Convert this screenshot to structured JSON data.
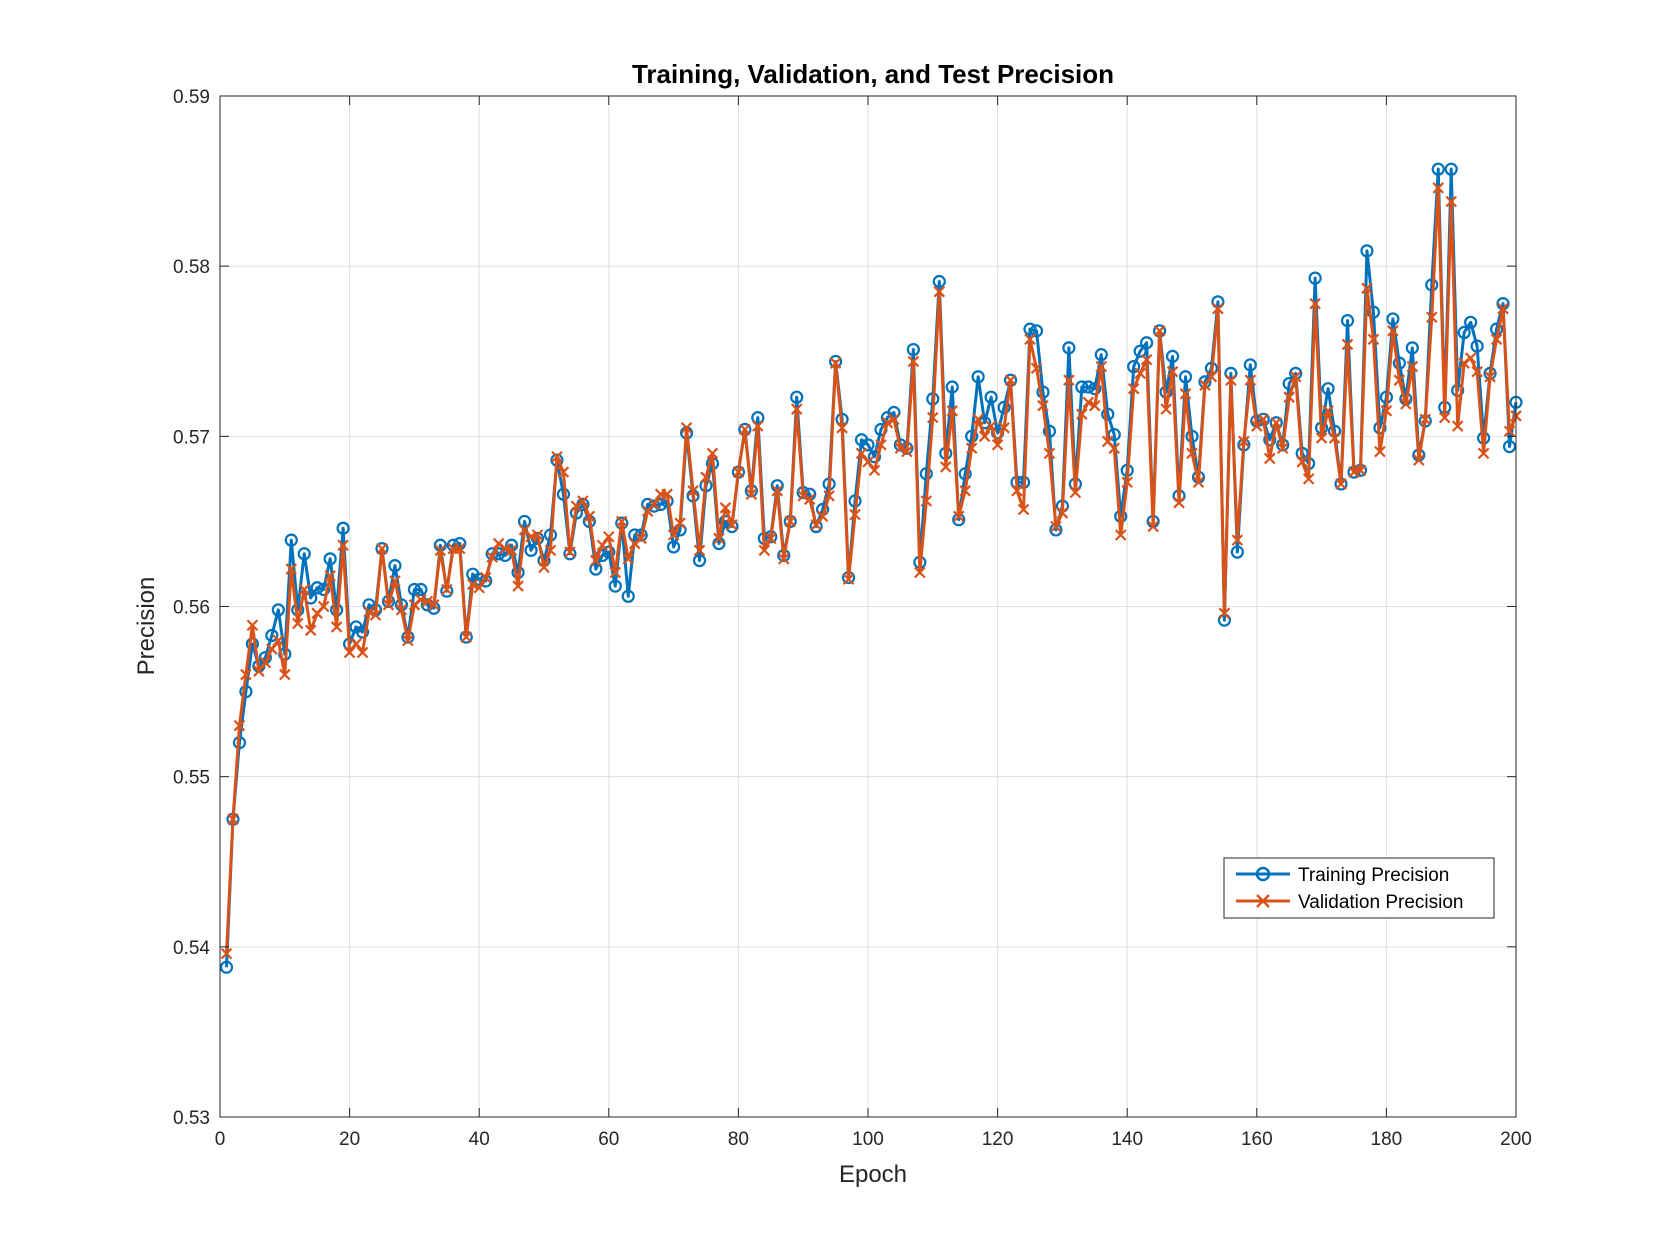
{
  "chart_data": {
    "type": "line",
    "title": "Training, Validation, and Test Precision",
    "xlabel": "Epoch",
    "ylabel": "Precision",
    "xlim": [
      0,
      200
    ],
    "ylim": [
      0.53,
      0.59
    ],
    "xticks": [
      0,
      20,
      40,
      60,
      80,
      100,
      120,
      140,
      160,
      180,
      200
    ],
    "yticks": [
      0.53,
      0.54,
      0.55,
      0.56,
      0.57,
      0.58,
      0.59
    ],
    "xtick_labels": [
      "0",
      "20",
      "40",
      "60",
      "80",
      "100",
      "120",
      "140",
      "160",
      "180",
      "200"
    ],
    "ytick_labels": [
      "0.53",
      "0.54",
      "0.55",
      "0.56",
      "0.57",
      "0.58",
      "0.59"
    ],
    "grid": true,
    "legend_position": "lower-right",
    "series": [
      {
        "name": "Training Precision",
        "color": "#0072BD",
        "marker": "circle",
        "x_start": 1,
        "values": [
          0.5388,
          0.5475,
          0.552,
          0.555,
          0.5578,
          0.5565,
          0.557,
          0.5583,
          0.5598,
          0.5572,
          0.5639,
          0.5598,
          0.5631,
          0.5605,
          0.5611,
          0.561,
          0.5628,
          0.5598,
          0.5646,
          0.5578,
          0.5588,
          0.5585,
          0.5601,
          0.5598,
          0.5634,
          0.5603,
          0.5624,
          0.5601,
          0.5582,
          0.561,
          0.561,
          0.5601,
          0.5599,
          0.5636,
          0.5609,
          0.5636,
          0.5637,
          0.5582,
          0.5619,
          0.5616,
          0.5615,
          0.5631,
          0.5631,
          0.563,
          0.5636,
          0.562,
          0.565,
          0.5633,
          0.564,
          0.5627,
          0.5642,
          0.5686,
          0.5666,
          0.5631,
          0.5655,
          0.566,
          0.565,
          0.5622,
          0.563,
          0.5632,
          0.5612,
          0.5649,
          0.5606,
          0.5642,
          0.5642,
          0.566,
          0.5659,
          0.566,
          0.5662,
          0.5635,
          0.5645,
          0.5702,
          0.5665,
          0.5627,
          0.5671,
          0.5684,
          0.5637,
          0.565,
          0.5647,
          0.5679,
          0.5704,
          0.5668,
          0.5711,
          0.564,
          0.5641,
          0.5671,
          0.563,
          0.565,
          0.5723,
          0.5667,
          0.5666,
          0.5647,
          0.5657,
          0.5672,
          0.5744,
          0.571,
          0.5617,
          0.5662,
          0.5698,
          0.5695,
          0.5688,
          0.5704,
          0.5711,
          0.5714,
          0.5695,
          0.5693,
          0.5751,
          0.5626,
          0.5678,
          0.5722,
          0.5791,
          0.569,
          0.5729,
          0.5651,
          0.5678,
          0.57,
          0.5735,
          0.5708,
          0.5723,
          0.5702,
          0.5717,
          0.5733,
          0.5673,
          0.5673,
          0.5763,
          0.5762,
          0.5726,
          0.5703,
          0.5645,
          0.5659,
          0.5752,
          0.5672,
          0.5729,
          0.5729,
          0.5728,
          0.5748,
          0.5713,
          0.5701,
          0.5653,
          0.568,
          0.5741,
          0.575,
          0.5755,
          0.565,
          0.5762,
          0.5726,
          0.5747,
          0.5665,
          0.5735,
          0.57,
          0.5676,
          0.5732,
          0.574,
          0.5779,
          0.5592,
          0.5737,
          0.5632,
          0.5695,
          0.5742,
          0.5709,
          0.571,
          0.5698,
          0.5708,
          0.5695,
          0.5731,
          0.5737,
          0.569,
          0.5684,
          0.5793,
          0.5705,
          0.5728,
          0.5703,
          0.5672,
          0.5768,
          0.5679,
          0.568,
          0.5809,
          0.5773,
          0.5705,
          0.5723,
          0.5769,
          0.5743,
          0.5722,
          0.5752,
          0.5689,
          0.5709,
          0.5789,
          0.5857,
          0.5717,
          0.5857,
          0.5727,
          0.5761,
          0.5767,
          0.5753,
          0.5699,
          0.5737,
          0.5763,
          0.5778,
          0.5694,
          0.572
        ]
      },
      {
        "name": "Validation Precision",
        "color": "#D95319",
        "marker": "x",
        "x_start": 1,
        "values": [
          0.5396,
          0.5475,
          0.553,
          0.556,
          0.5589,
          0.5562,
          0.5567,
          0.5575,
          0.558,
          0.556,
          0.5622,
          0.559,
          0.561,
          0.5586,
          0.5596,
          0.56,
          0.5618,
          0.5588,
          0.5636,
          0.5573,
          0.5578,
          0.5573,
          0.5597,
          0.5595,
          0.5634,
          0.5601,
          0.5615,
          0.5598,
          0.558,
          0.5601,
          0.5604,
          0.5603,
          0.5601,
          0.5633,
          0.561,
          0.5634,
          0.5634,
          0.5582,
          0.5613,
          0.5611,
          0.5617,
          0.5629,
          0.5637,
          0.5634,
          0.5633,
          0.5612,
          0.5645,
          0.5641,
          0.5642,
          0.5623,
          0.5633,
          0.5688,
          0.5679,
          0.5632,
          0.5659,
          0.5662,
          0.5653,
          0.5627,
          0.5636,
          0.5641,
          0.562,
          0.565,
          0.5628,
          0.5637,
          0.564,
          0.5656,
          0.566,
          0.5666,
          0.5666,
          0.5642,
          0.5649,
          0.5705,
          0.5668,
          0.5633,
          0.5676,
          0.569,
          0.564,
          0.5658,
          0.5648,
          0.5679,
          0.5704,
          0.5666,
          0.5706,
          0.5633,
          0.564,
          0.5668,
          0.5628,
          0.565,
          0.5716,
          0.5665,
          0.5663,
          0.5648,
          0.5653,
          0.5665,
          0.5743,
          0.5705,
          0.5616,
          0.5654,
          0.569,
          0.5685,
          0.568,
          0.5695,
          0.5708,
          0.571,
          0.5693,
          0.5691,
          0.5744,
          0.562,
          0.5662,
          0.5711,
          0.5785,
          0.5682,
          0.5715,
          0.5653,
          0.5668,
          0.5693,
          0.571,
          0.57,
          0.5706,
          0.5695,
          0.5705,
          0.5733,
          0.5668,
          0.5657,
          0.5757,
          0.574,
          0.5718,
          0.569,
          0.5647,
          0.5655,
          0.5733,
          0.5667,
          0.5713,
          0.572,
          0.5718,
          0.5741,
          0.5697,
          0.5693,
          0.5642,
          0.5673,
          0.5728,
          0.5737,
          0.5745,
          0.5647,
          0.5762,
          0.5716,
          0.5738,
          0.5661,
          0.5725,
          0.569,
          0.5673,
          0.573,
          0.5735,
          0.5775,
          0.5596,
          0.5733,
          0.5639,
          0.5697,
          0.5733,
          0.5706,
          0.571,
          0.5687,
          0.5708,
          0.5693,
          0.5723,
          0.5735,
          0.5685,
          0.5675,
          0.5778,
          0.5699,
          0.5715,
          0.5699,
          0.5672,
          0.5754,
          0.5679,
          0.568,
          0.5787,
          0.5757,
          0.5691,
          0.5715,
          0.5762,
          0.5733,
          0.5719,
          0.5741,
          0.5686,
          0.571,
          0.577,
          0.5846,
          0.5711,
          0.5838,
          0.5706,
          0.5743,
          0.5746,
          0.5738,
          0.569,
          0.5735,
          0.5757,
          0.5775,
          0.5703,
          0.5712
        ]
      }
    ]
  }
}
